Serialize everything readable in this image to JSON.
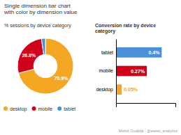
{
  "title": "Single dimension bar chart\nwith color by dimension value",
  "annotation": "Mehdi Oudjida - @ewssi_analytics",
  "chart_data": [
    {
      "type": "pie",
      "title": "% sessions by device category",
      "categories": [
        "desktop",
        "mobile",
        "tablet"
      ],
      "values": [
        70.9,
        26.8,
        2.3
      ],
      "value_labels": [
        "70.9%",
        "26.8%",
        null
      ],
      "colors": [
        "#F5A623",
        "#D0021B",
        "#4A90D9"
      ],
      "data_labels": true,
      "legend": "bottom"
    },
    {
      "type": "bar",
      "title": "Conversion rate by device\ncategory",
      "orientation": "horizontal",
      "categories": [
        "tablet",
        "mobile",
        "desktop"
      ],
      "values": [
        0.4,
        0.27,
        0.05
      ],
      "value_labels": [
        "0.4%",
        "0.27%",
        "0.05%"
      ],
      "colors": [
        "#4A90D9",
        "#D0021B",
        "#F5A623"
      ],
      "xlim": [
        0,
        0.52
      ],
      "data_labels": true,
      "tick_labels": "y"
    }
  ]
}
